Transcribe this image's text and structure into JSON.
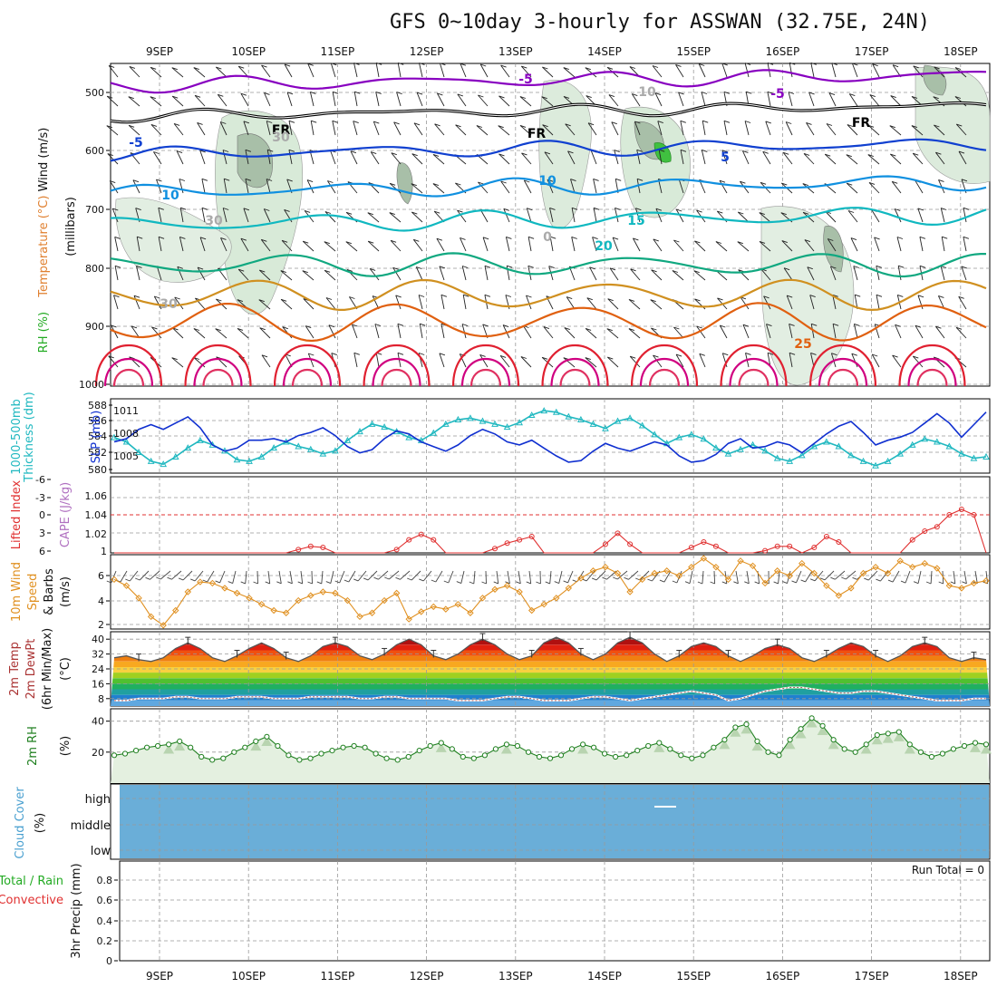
{
  "page": {
    "title": "GFS 0~10day 3-hourly for ASSWAN (32.75E, 24N)"
  },
  "chart_data": [
    {
      "type": "line",
      "panel": "upper-air",
      "ylabel_parts": [
        "Wind (m/s)",
        "Temperature (°C)",
        "RH (%)",
        "(millibars)"
      ],
      "yticks": [
        "500",
        "600",
        "700",
        "800",
        "900",
        "1000"
      ],
      "date_labels": [
        "9SEP",
        "10SEP",
        "11SEP",
        "12SEP",
        "13SEP",
        "14SEP",
        "15SEP",
        "16SEP",
        "17SEP",
        "18SEP"
      ],
      "contour_labels": [
        "-5",
        "-5",
        "FR",
        "FR",
        "FR",
        "-5",
        "5",
        "10",
        "10",
        "15",
        "20",
        "25",
        "30",
        "30",
        "10",
        "30",
        "0"
      ],
      "isotherm_colors": [
        "#8800c0",
        "#1040d0",
        "#1090e0",
        "#10b8c0",
        "#10a880",
        "#d09020",
        "#e06010",
        "#e02030",
        "#d00080"
      ]
    },
    {
      "type": "line",
      "panel": "thickness-slp",
      "ylabel_parts": [
        "1000-500mb",
        "Thickness (dm)",
        "SLP (mb)"
      ],
      "yticks_left": [
        "588",
        "586",
        "584",
        "582",
        "580"
      ],
      "yticks_right": [
        "1011",
        "1008",
        "1005"
      ],
      "series": [
        {
          "name": "1000-500mb Thickness (dm)",
          "color": "#20b8c0",
          "values": [
            583.8,
            583.2,
            581.8,
            580.6,
            580.2,
            581.2,
            582.4,
            583.4,
            582.8,
            582.0,
            580.8,
            580.6,
            581.2,
            582.4,
            583.2,
            582.6,
            582.2,
            581.6,
            582.0,
            583.4,
            584.6,
            585.6,
            585.2,
            584.6,
            583.8,
            583.4,
            584.4,
            585.6,
            586.2,
            586.4,
            586.0,
            585.6,
            585.2,
            585.8,
            586.8,
            587.4,
            587.2,
            586.6,
            586.2,
            585.6,
            585.0,
            586.0,
            586.4,
            585.4,
            584.2,
            583.0,
            583.8,
            584.2,
            583.6,
            582.4,
            581.6,
            582.2,
            582.8,
            582.0,
            581.0,
            580.6,
            581.4,
            582.6,
            583.2,
            582.6,
            581.4,
            580.6,
            580.0,
            580.6,
            581.6,
            582.8,
            583.6,
            583.2,
            582.6,
            581.6,
            581.0,
            581.2
          ]
        },
        {
          "name": "SLP (mb)",
          "color": "#1030d0",
          "values": [
            1007.0,
            1007.4,
            1008.6,
            1009.2,
            1008.6,
            1009.4,
            1010.2,
            1008.8,
            1006.6,
            1005.8,
            1006.2,
            1007.2,
            1007.2,
            1007.4,
            1007.0,
            1007.8,
            1008.2,
            1008.8,
            1007.8,
            1006.4,
            1005.6,
            1006.0,
            1007.4,
            1008.4,
            1008.0,
            1007.0,
            1006.4,
            1005.8,
            1006.6,
            1007.8,
            1008.6,
            1008.0,
            1007.0,
            1006.6,
            1007.2,
            1006.2,
            1005.2,
            1004.4,
            1004.6,
            1005.8,
            1006.8,
            1006.2,
            1005.8,
            1006.4,
            1007.0,
            1006.6,
            1005.2,
            1004.4,
            1004.6,
            1005.4,
            1006.8,
            1007.4,
            1006.2,
            1006.4,
            1007.0,
            1006.6,
            1005.6,
            1006.8,
            1008.0,
            1009.0,
            1009.6,
            1008.2,
            1006.6,
            1007.2,
            1007.6,
            1008.2,
            1009.4,
            1010.6,
            1009.4,
            1007.6,
            1009.2,
            1010.8
          ]
        }
      ]
    },
    {
      "type": "line",
      "panel": "stability",
      "ylabel_parts": [
        "Lifted Index",
        "CAPE (J/kg)"
      ],
      "yticks_left": [
        "-6",
        "-3",
        "0",
        "3",
        "6"
      ],
      "yticks_right": [
        "1.06",
        "1.04",
        "1.02",
        "1"
      ],
      "series": [
        {
          "name": "CAPE (J/kg)",
          "color": "#e03030",
          "values": [
            1.0,
            1.0,
            1.0,
            1.0,
            1.0,
            1.0,
            1.0,
            1.0,
            1.0,
            1.0,
            1.0,
            1.0,
            1.0,
            1.0,
            1.0,
            1.003,
            1.006,
            1.005,
            1.0,
            1.0,
            1.0,
            1.0,
            1.0,
            1.003,
            1.012,
            1.017,
            1.012,
            1.0,
            1.0,
            1.0,
            1.0,
            1.004,
            1.009,
            1.012,
            1.015,
            1.0,
            1.0,
            1.0,
            1.0,
            1.0,
            1.008,
            1.018,
            1.008,
            1.0,
            1.0,
            1.0,
            1.0,
            1.005,
            1.01,
            1.006,
            1.0,
            1.0,
            1.0,
            1.002,
            1.006,
            1.006,
            1.0,
            1.005,
            1.015,
            1.01,
            1.0,
            1.0,
            1.0,
            1.0,
            1.0,
            1.012,
            1.02,
            1.024,
            1.035,
            1.04,
            1.035,
            1.0
          ]
        }
      ]
    },
    {
      "type": "line",
      "panel": "10m-wind",
      "ylabel_parts": [
        "10m Wind",
        "Speed",
        "& Barbs",
        "(m/s)"
      ],
      "yticks": [
        "6",
        "4",
        "2"
      ],
      "ylim": [
        1.5,
        7.5
      ],
      "series": [
        {
          "name": "10m Wind Speed",
          "color": "#e09020",
          "values": [
            5.5,
            5.0,
            4.0,
            2.5,
            1.8,
            3.0,
            4.5,
            5.3,
            5.2,
            4.8,
            4.4,
            4.0,
            3.5,
            3.0,
            2.8,
            3.8,
            4.2,
            4.5,
            4.4,
            3.8,
            2.5,
            2.8,
            3.8,
            4.4,
            2.3,
            2.9,
            3.3,
            3.1,
            3.5,
            2.8,
            4.0,
            4.7,
            5.0,
            4.5,
            3.0,
            3.5,
            4.0,
            4.8,
            5.6,
            6.2,
            6.5,
            6.0,
            4.5,
            5.5,
            6.0,
            6.2,
            5.8,
            6.5,
            7.2,
            6.5,
            5.5,
            7.0,
            6.6,
            5.2,
            6.2,
            5.8,
            6.8,
            6.0,
            5.0,
            4.2,
            4.8,
            6.0,
            6.5,
            6.0,
            7.0,
            6.5,
            6.8,
            6.4,
            5.0,
            4.8,
            5.2,
            5.4
          ]
        }
      ]
    },
    {
      "type": "area",
      "panel": "2m-temp",
      "ylabel_parts": [
        "2m Temp",
        "2m DewPt",
        "(6hr Min/Max)",
        "(°C)"
      ],
      "yticks": [
        "40",
        "32",
        "24",
        "16",
        "8"
      ],
      "ylim": [
        4,
        44
      ],
      "series": [
        {
          "name": "2m Temp",
          "color": "#555555",
          "values": [
            30,
            31,
            29,
            28,
            30,
            35,
            38,
            35,
            30,
            28,
            31,
            35,
            38,
            35,
            30,
            28,
            31,
            36,
            38,
            36,
            31,
            29,
            32,
            37,
            40,
            37,
            31,
            29,
            32,
            37,
            40,
            37,
            32,
            29,
            31,
            38,
            41,
            38,
            32,
            29,
            32,
            38,
            41,
            38,
            32,
            28,
            31,
            36,
            38,
            36,
            31,
            28,
            31,
            35,
            37,
            35,
            30,
            28,
            31,
            35,
            38,
            36,
            31,
            28,
            31,
            36,
            38,
            36,
            30,
            28,
            30,
            29
          ]
        },
        {
          "name": "2m DewPt",
          "color": "#b06060",
          "values": [
            7,
            7,
            8,
            8,
            8,
            9,
            9,
            8,
            8,
            8,
            9,
            9,
            9,
            8,
            8,
            8,
            9,
            9,
            9,
            9,
            8,
            8,
            9,
            9,
            8,
            8,
            8,
            8,
            7,
            7,
            7,
            8,
            9,
            9,
            8,
            7,
            7,
            7,
            8,
            9,
            9,
            8,
            7,
            8,
            9,
            10,
            11,
            12,
            11,
            10,
            7,
            8,
            10,
            12,
            13,
            14,
            14,
            13,
            12,
            11,
            11,
            12,
            12,
            11,
            10,
            9,
            8,
            7,
            7,
            7,
            8,
            8
          ]
        }
      ]
    },
    {
      "type": "area",
      "panel": "2m-rh",
      "ylabel_parts": [
        "2m RH",
        "(%)"
      ],
      "yticks": [
        "40",
        "20"
      ],
      "ylim": [
        0,
        48
      ],
      "series": [
        {
          "name": "2m RH",
          "color": "#208020",
          "values": [
            18,
            19,
            21,
            23,
            24,
            25,
            27,
            23,
            17,
            15,
            16,
            20,
            23,
            27,
            30,
            24,
            18,
            15,
            16,
            19,
            21,
            23,
            24,
            23,
            19,
            16,
            15,
            17,
            21,
            24,
            26,
            22,
            17,
            16,
            18,
            22,
            25,
            24,
            20,
            17,
            16,
            18,
            22,
            25,
            23,
            19,
            17,
            18,
            21,
            24,
            26,
            22,
            18,
            16,
            18,
            23,
            28,
            36,
            38,
            27,
            20,
            18,
            28,
            35,
            42,
            37,
            28,
            22,
            20,
            25,
            31,
            32,
            33,
            25,
            20,
            17,
            19,
            22,
            24,
            26,
            25
          ]
        }
      ]
    },
    {
      "type": "heatmap",
      "panel": "cloud-cover",
      "ylabel_parts": [
        "Cloud Cover",
        "(%)"
      ],
      "levels": [
        "high",
        "middle",
        "low"
      ],
      "fill_color": "#6aaed8"
    },
    {
      "type": "bar",
      "panel": "precip",
      "ylabel_parts": [
        "Total / Rain",
        "Convective",
        "3hr Precip (mm)"
      ],
      "yticks": [
        "0.8",
        "0.6",
        "0.4",
        "0.2",
        "0"
      ],
      "ylim": [
        0,
        0.9
      ],
      "run_total": "Run Total = 0",
      "values": []
    }
  ]
}
